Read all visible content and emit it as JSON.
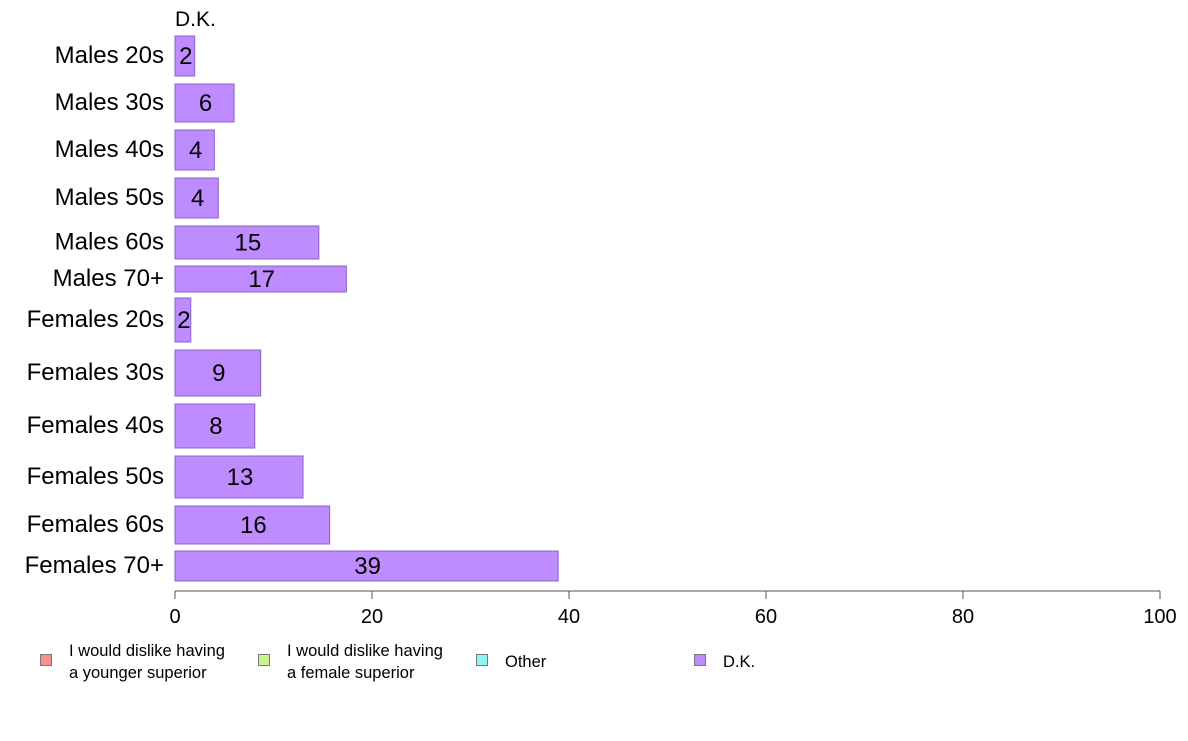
{
  "chart_data": {
    "type": "bar",
    "orientation": "horizontal",
    "stacked": true,
    "title": "D.K.",
    "categories": [
      "Males 20s",
      "Males 30s",
      "Males 40s",
      "Males 50s",
      "Males 60s",
      "Males 70+",
      "Females 20s",
      "Females 30s",
      "Females 40s",
      "Females 50s",
      "Females 60s",
      "Females 70+"
    ],
    "series": [
      {
        "name": "I would dislike having\na younger superior",
        "color": "#f4918e",
        "values": [
          0,
          0,
          0,
          0,
          0,
          0,
          0,
          0,
          0,
          0,
          0,
          0
        ]
      },
      {
        "name": "I would dislike having\na female superior",
        "color": "#c8f58e",
        "values": [
          0,
          0,
          0,
          0,
          0,
          0,
          0,
          0,
          0,
          0,
          0,
          0
        ]
      },
      {
        "name": "Other",
        "color": "#8ef5f2",
        "values": [
          0,
          0,
          0,
          0,
          0,
          0,
          0,
          0,
          0,
          0,
          0,
          0
        ]
      },
      {
        "name": "D.K.",
        "color": "#bf8cff",
        "values": [
          2,
          6,
          4,
          4.4,
          14.6,
          17.4,
          1.6,
          8.7,
          8.1,
          13,
          15.7,
          38.9
        ]
      }
    ],
    "data_labels": [
      "2",
      "6",
      "4",
      "4",
      "15",
      "17",
      "2",
      "9",
      "8",
      "13",
      "16",
      "39"
    ],
    "xlim": [
      0,
      100
    ],
    "xticks": [
      "0",
      "20",
      "40",
      "60",
      "80",
      "100"
    ],
    "grid": false,
    "legend_position": "bottom"
  }
}
